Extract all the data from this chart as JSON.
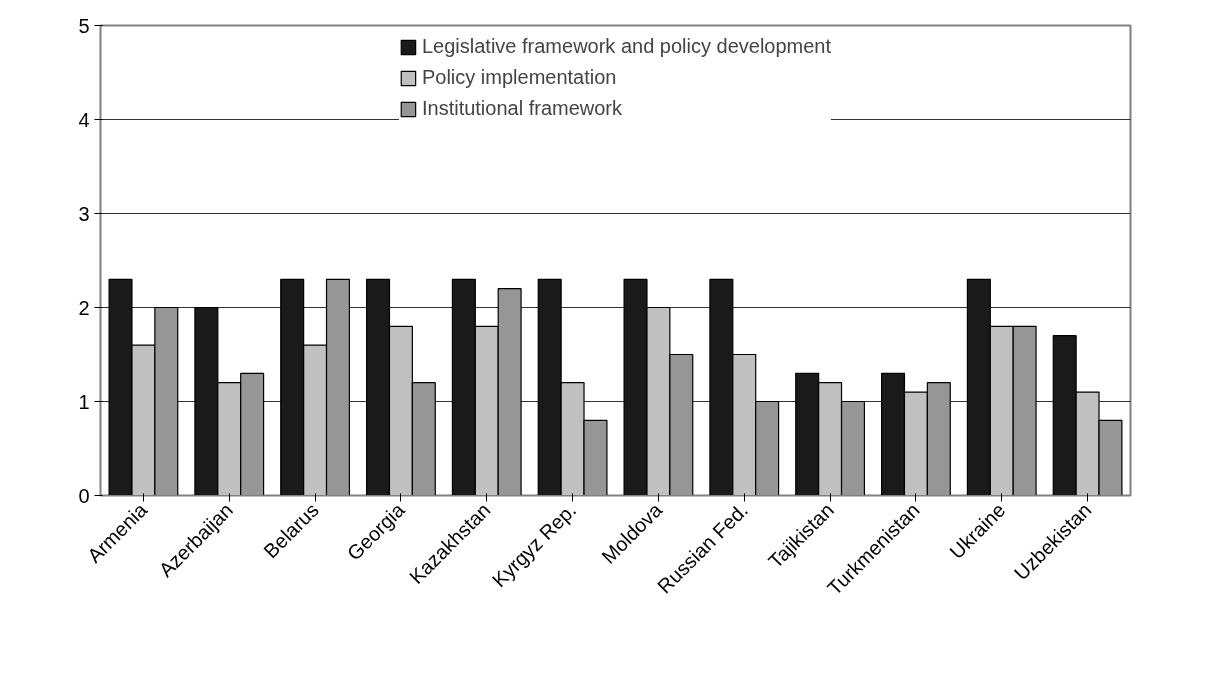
{
  "chart_data": {
    "type": "bar",
    "categories": [
      "Armenia",
      "Azerbaijan",
      "Belarus",
      "Georgia",
      "Kazakhstan",
      "Kyrgyz Rep.",
      "Moldova",
      "Russian Fed.",
      "Tajikistan",
      "Turkmenistan",
      "Ukraine",
      "Uzbekistan"
    ],
    "series": [
      {
        "name": "Legislative framework and policy development",
        "color": "#1a1a1a",
        "values": [
          2.3,
          2.0,
          2.3,
          2.3,
          2.3,
          2.3,
          2.3,
          2.3,
          1.3,
          1.3,
          2.3,
          1.7
        ]
      },
      {
        "name": "Policy implementation",
        "color": "#c0c0c0",
        "values": [
          1.6,
          1.2,
          1.6,
          1.8,
          1.8,
          1.2,
          2.0,
          1.5,
          1.2,
          1.1,
          1.8,
          1.1
        ]
      },
      {
        "name": "Institutional framework",
        "color": "#969696",
        "values": [
          2.0,
          1.3,
          2.3,
          1.2,
          2.2,
          0.8,
          1.5,
          1.0,
          1.0,
          1.2,
          1.8,
          0.8
        ]
      }
    ],
    "ylim": [
      0,
      5
    ],
    "yticks": [
      0,
      1,
      2,
      3,
      4,
      5
    ],
    "grid": "y",
    "legend": "top"
  }
}
